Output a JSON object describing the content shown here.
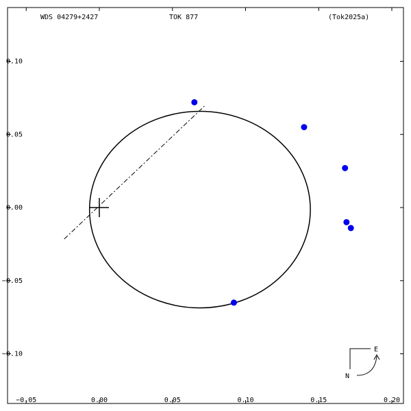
{
  "header": {
    "designation": "WDS 04279+2427",
    "discoverer": "TOK 877",
    "reference": "(Tok2025a)"
  },
  "chart_data": {
    "type": "scatter",
    "title": "",
    "xlabel": "",
    "ylabel": "",
    "xlim": [
      -0.05,
      0.2
    ],
    "ylim": [
      -0.1,
      0.1
    ],
    "x_ticks": [
      -0.05,
      0.0,
      0.05,
      0.1,
      0.15,
      0.2
    ],
    "x_tick_labels": [
      "−0.05",
      "0.00",
      "0.05",
      "0.10",
      "0.15",
      "0.20"
    ],
    "y_ticks": [
      0.1,
      0.05,
      0.0,
      -0.05,
      -0.1
    ],
    "y_tick_labels": [
      "−0.10",
      "−0.05",
      "0.00",
      "0.05",
      "0.10"
    ],
    "y_orientation": "north-up-negative",
    "grid": false,
    "primary": {
      "x": 0,
      "y": 0
    },
    "orbit": {
      "cx": 0.0688,
      "cy": 0.0014,
      "rx": 0.0755,
      "ry": 0.0672
    },
    "line_of_apsides": {
      "x1": -0.024,
      "y1": 0.0215,
      "x2": 0.072,
      "y2": -0.0695
    },
    "observations": [
      {
        "x": 0.065,
        "y": -0.072
      },
      {
        "x": 0.14,
        "y": -0.055
      },
      {
        "x": 0.168,
        "y": -0.027
      },
      {
        "x": 0.169,
        "y": 0.01
      },
      {
        "x": 0.172,
        "y": 0.014
      },
      {
        "x": 0.092,
        "y": 0.065
      }
    ],
    "point_color": "#0000ee",
    "compass": {
      "east_label": "E",
      "north_label": "N"
    }
  }
}
